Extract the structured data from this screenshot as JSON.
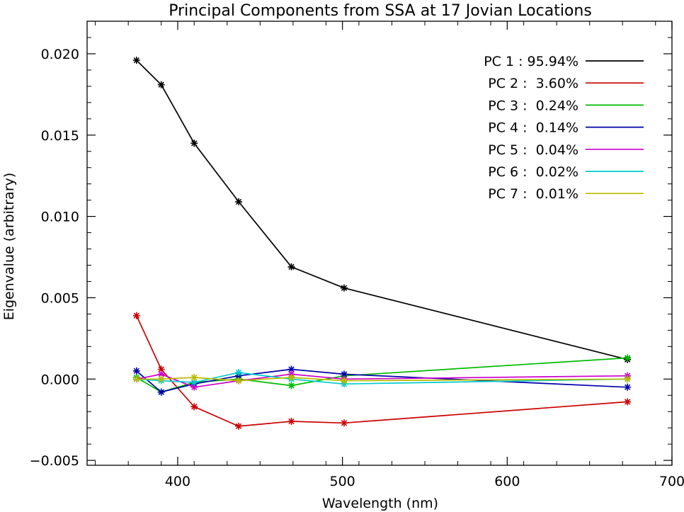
{
  "chart_data": {
    "type": "line",
    "title": "Principal Components from SSA at 17 Jovian Locations",
    "xlabel": "Wavelength (nm)",
    "ylabel": "Eigenvalue (arbitrary)",
    "xlim": [
      345,
      700
    ],
    "ylim": [
      -0.0053,
      0.022
    ],
    "xticks": [
      400,
      500,
      600,
      700
    ],
    "xtick_labels": [
      "400",
      "500",
      "600",
      "700"
    ],
    "yticks": [
      -0.005,
      0.0,
      0.005,
      0.01,
      0.015,
      0.02
    ],
    "ytick_labels": [
      "−0.005",
      "0.000",
      "0.005",
      "0.010",
      "0.015",
      "0.020"
    ],
    "grid": false,
    "legend_position": "top-right",
    "marker": "asterisk",
    "x": [
      375,
      390,
      410,
      437,
      469,
      501,
      673
    ],
    "series": [
      {
        "name": "PC 1 : 95.94%",
        "color": "#000000",
        "values": [
          0.0196,
          0.0181,
          0.0145,
          0.0109,
          0.0069,
          0.0056,
          0.0012
        ]
      },
      {
        "name": "PC 2 :  3.60%",
        "color": "#cc0000",
        "values": [
          0.0039,
          0.0006,
          -0.0017,
          -0.0029,
          -0.0026,
          -0.0027,
          -0.0014
        ]
      },
      {
        "name": "PC 3 :  0.24%",
        "color": "#00bb00",
        "values": [
          0.0001,
          -0.0008,
          -0.0002,
          0.0,
          -0.0004,
          0.0002,
          0.0013
        ]
      },
      {
        "name": "PC 4 :  0.14%",
        "color": "#0000aa",
        "values": [
          0.0005,
          -0.0008,
          -0.0003,
          0.0002,
          0.0006,
          0.0003,
          -0.0005
        ]
      },
      {
        "name": "PC 5 :  0.04%",
        "color": "#cc00cc",
        "values": [
          0.0,
          0.0003,
          -0.0005,
          -0.0001,
          0.0003,
          0.0,
          0.0002
        ]
      },
      {
        "name": "PC 6 :  0.02%",
        "color": "#00cccc",
        "values": [
          0.0,
          -0.0001,
          -0.0002,
          0.0004,
          0.0,
          -0.0003,
          0.0
        ]
      },
      {
        "name": "PC 7 :  0.01%",
        "color": "#bbbb00",
        "values": [
          0.0,
          0.0,
          0.0001,
          -0.0001,
          0.0001,
          -0.0001,
          0.0
        ]
      }
    ]
  }
}
